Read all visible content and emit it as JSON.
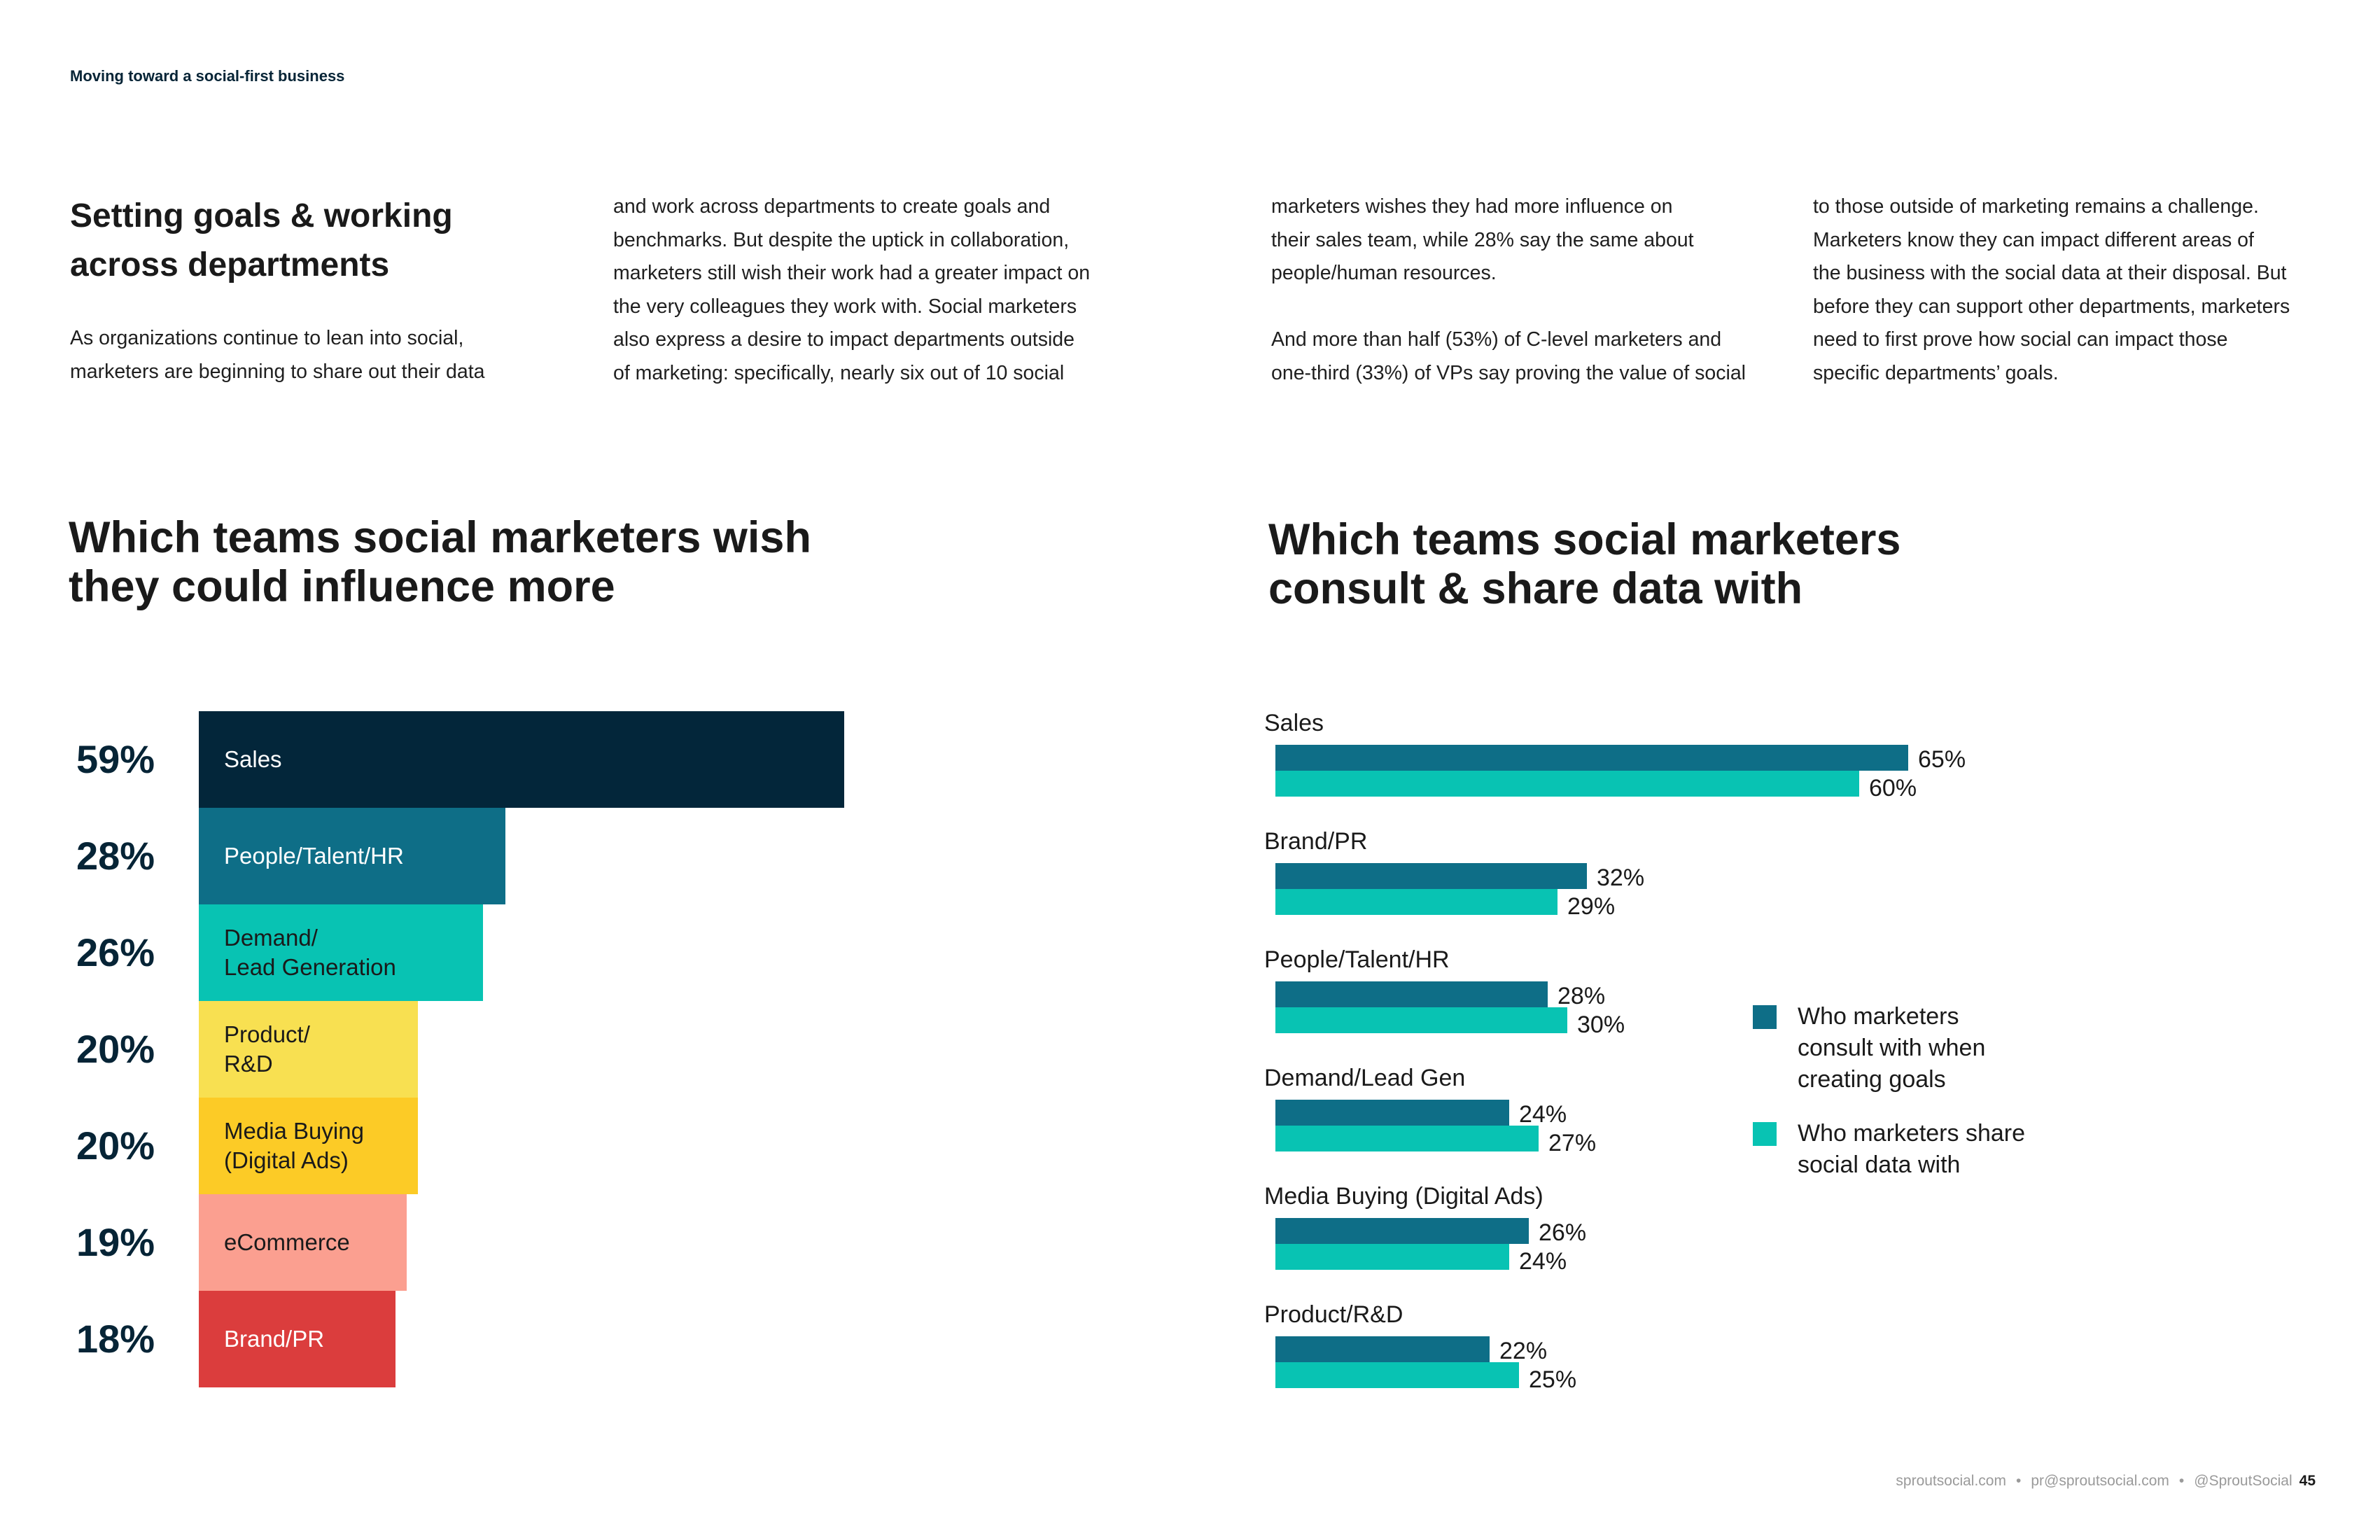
{
  "header": {
    "running_head": "Moving toward a social-first business"
  },
  "intro": {
    "title": "Setting goals & working\nacross departments",
    "columns": [
      "As organizations continue to lean into social,\nmarketers are beginning to share out their data",
      "and work across departments to create goals and\nbenchmarks. But despite the uptick in collaboration,\nmarketers still wish their work had a greater impact on\nthe very colleagues they work with. Social marketers\nalso express a desire to impact departments outside\nof marketing: specifically, nearly six out of 10 social",
      "marketers wishes they had more influence on\ntheir sales team, while 28% say the same about\npeople/human resources.\n\nAnd more than half (53%) of C-level marketers and\none-third (33%) of VPs say proving the value of social",
      "to those outside of marketing remains a challenge.\nMarketers know they can impact different areas of\nthe business with the social data at their disposal. But\nbefore they can support other departments, marketers\nneed to first prove how social can impact those\nspecific departments’ goals."
    ]
  },
  "chart_data": [
    {
      "type": "bar",
      "orientation": "horizontal",
      "title": "Which teams social marketers wish\nthey could influence more",
      "categories": [
        "Sales",
        "People/Talent/HR",
        "Demand/\nLead Generation",
        "Product/\nR&D",
        "Media Buying\n(Digital Ads)",
        "eCommerce",
        "Brand/PR"
      ],
      "values": [
        59,
        28,
        26,
        20,
        20,
        19,
        18
      ],
      "value_labels": [
        "59%",
        "28%",
        "26%",
        "20%",
        "20%",
        "19%",
        "18%"
      ],
      "colors": [
        "#03263a",
        "#0e6e87",
        "#08c3b3",
        "#f8e051",
        "#fccb26",
        "#fb9f90",
        "#db3d3d"
      ],
      "label_colors": [
        "#ffffff",
        "#ffffff",
        "#1a1a1a",
        "#1a1a1a",
        "#1a1a1a",
        "#1a1a1a",
        "#ffffff"
      ],
      "xlim": [
        0,
        59
      ]
    },
    {
      "type": "bar",
      "orientation": "horizontal",
      "title": "Which teams social marketers\nconsult & share data with",
      "categories": [
        "Sales",
        "Brand/PR",
        "People/Talent/HR",
        "Demand/Lead Gen",
        "Media Buying (Digital Ads)",
        "Product/R&D"
      ],
      "series": [
        {
          "name": "Who marketers\nconsult with when\ncreating goals",
          "values": [
            65,
            32,
            28,
            24,
            26,
            22
          ],
          "labels": [
            "65%",
            "32%",
            "28%",
            "24%",
            "26%",
            "22%"
          ],
          "color": "#0e6e87"
        },
        {
          "name": "Who marketers share\nsocial data with",
          "values": [
            60,
            29,
            30,
            27,
            24,
            25
          ],
          "labels": [
            "60%",
            "29%",
            "30%",
            "27%",
            "24%",
            "25%"
          ],
          "color": "#08c3b3"
        }
      ],
      "legend": "right",
      "xlim": [
        0,
        65
      ]
    }
  ],
  "footer": {
    "website": "sproutsocial.com",
    "email": "pr@sproutsocial.com",
    "handle": "@SproutSocial",
    "separator": "•",
    "page_number": "45"
  }
}
